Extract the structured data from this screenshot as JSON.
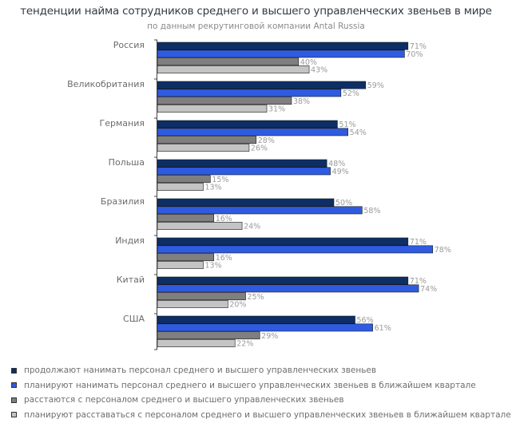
{
  "chart_data": {
    "type": "bar",
    "orientation": "horizontal",
    "title": "тенденции найма сотрудников среднего и высшего управленческих звеньев в мире",
    "subtitle": "по данным рекрутинговой компании Antal Russia",
    "xlabel": "",
    "ylabel": "",
    "xlim": [
      0,
      100
    ],
    "grid": false,
    "legend_position": "bottom",
    "value_suffix": "%",
    "categories": [
      "Россия",
      "Великобритания",
      "Германия",
      "Польша",
      "Бразилия",
      "Индия",
      "Китай",
      "США"
    ],
    "series": [
      {
        "name": "продолжают нанимать персонал среднего и высшего управленческих звеньев",
        "color": "#0d2f66",
        "values": [
          71,
          59,
          51,
          48,
          50,
          71,
          71,
          56
        ]
      },
      {
        "name": "планируют нанимать персонал среднего и высшего управленческих звеньев в ближайшем квартале",
        "color": "#2f5be0",
        "values": [
          70,
          52,
          54,
          49,
          58,
          78,
          74,
          61
        ]
      },
      {
        "name": "расстаются с персоналом среднего и высшего управленческих звеньев",
        "color": "#7f7f7f",
        "values": [
          40,
          38,
          28,
          15,
          16,
          16,
          25,
          29
        ]
      },
      {
        "name": "планируют расставаться с персоналом среднего и высшего управленческих звеньев в ближайшем квартале",
        "color": "#c4c4c4",
        "values": [
          43,
          31,
          26,
          13,
          24,
          13,
          20,
          22
        ]
      }
    ]
  }
}
